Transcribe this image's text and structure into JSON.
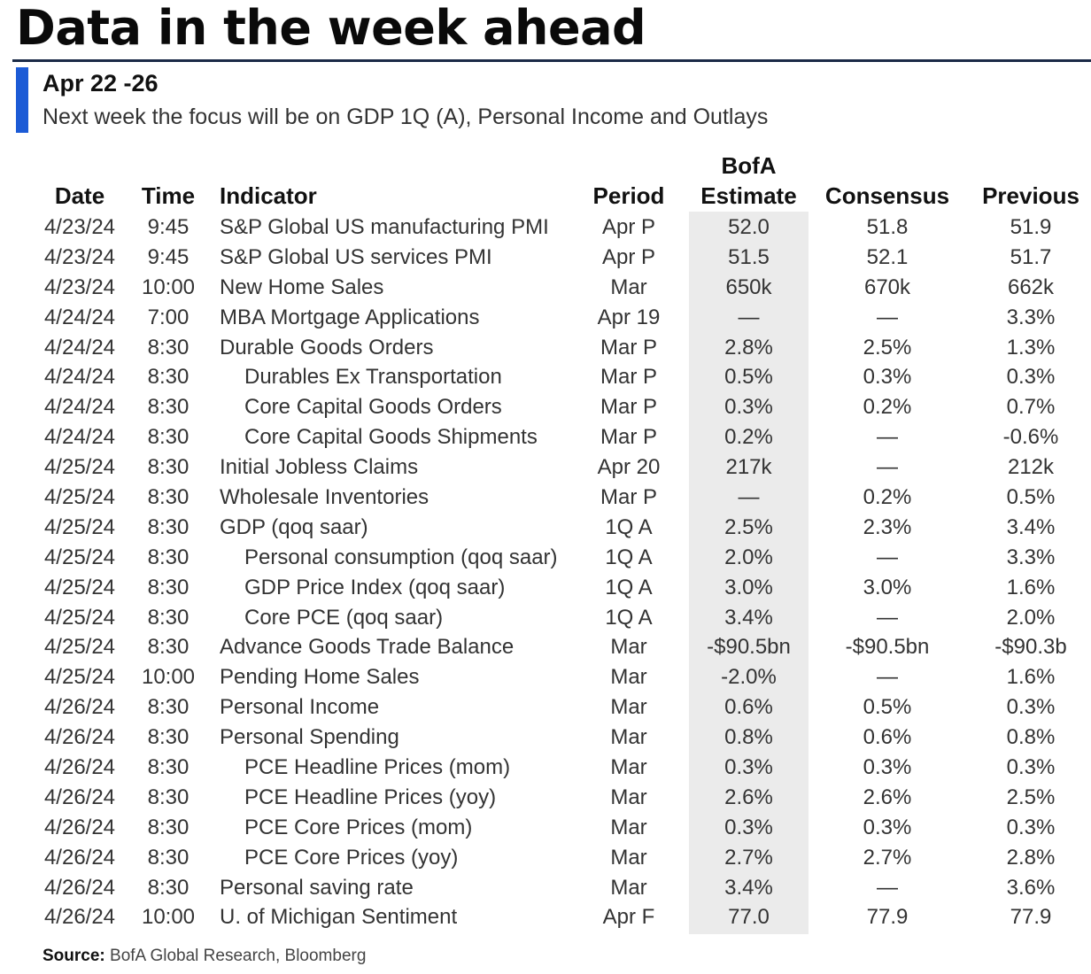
{
  "title": "Data in the week ahead",
  "section": {
    "heading": "Apr 22 -26",
    "description": "Next week the focus will be on GDP 1Q (A), Personal Income and Outlays"
  },
  "colors": {
    "accent": "#1c5bd6",
    "rule": "#1b2a47",
    "estimate_shading": "#ebebeb"
  },
  "table": {
    "headers": {
      "date": "Date",
      "time": "Time",
      "indicator": "Indicator",
      "period": "Period",
      "bofa_line1": "BofA",
      "bofa_line2": "Estimate",
      "consensus": "Consensus",
      "previous": "Previous"
    },
    "rows": [
      {
        "date": "4/23/24",
        "time": "9:45",
        "indicator": "S&P Global US manufacturing PMI",
        "indent": false,
        "period": "Apr P",
        "bofa": "52.0",
        "consensus": "51.8",
        "previous": "51.9"
      },
      {
        "date": "4/23/24",
        "time": "9:45",
        "indicator": "S&P Global US services PMI",
        "indent": false,
        "period": "Apr P",
        "bofa": "51.5",
        "consensus": "52.1",
        "previous": "51.7"
      },
      {
        "date": "4/23/24",
        "time": "10:00",
        "indicator": "New Home Sales",
        "indent": false,
        "period": "Mar",
        "bofa": "650k",
        "consensus": "670k",
        "previous": "662k"
      },
      {
        "date": "4/24/24",
        "time": "7:00",
        "indicator": "MBA Mortgage Applications",
        "indent": false,
        "period": "Apr 19",
        "bofa": "—",
        "consensus": "—",
        "previous": "3.3%"
      },
      {
        "date": "4/24/24",
        "time": "8:30",
        "indicator": "Durable Goods Orders",
        "indent": false,
        "period": "Mar P",
        "bofa": "2.8%",
        "consensus": "2.5%",
        "previous": "1.3%"
      },
      {
        "date": "4/24/24",
        "time": "8:30",
        "indicator": "Durables Ex Transportation",
        "indent": true,
        "period": "Mar P",
        "bofa": "0.5%",
        "consensus": "0.3%",
        "previous": "0.3%"
      },
      {
        "date": "4/24/24",
        "time": "8:30",
        "indicator": "Core Capital Goods Orders",
        "indent": true,
        "period": "Mar P",
        "bofa": "0.3%",
        "consensus": "0.2%",
        "previous": "0.7%"
      },
      {
        "date": "4/24/24",
        "time": "8:30",
        "indicator": "Core Capital Goods Shipments",
        "indent": true,
        "period": "Mar P",
        "bofa": "0.2%",
        "consensus": "—",
        "previous": "-0.6%"
      },
      {
        "date": "4/25/24",
        "time": "8:30",
        "indicator": "Initial Jobless Claims",
        "indent": false,
        "period": "Apr 20",
        "bofa": "217k",
        "consensus": "—",
        "previous": "212k"
      },
      {
        "date": "4/25/24",
        "time": "8:30",
        "indicator": "Wholesale Inventories",
        "indent": false,
        "period": "Mar P",
        "bofa": "—",
        "consensus": "0.2%",
        "previous": "0.5%"
      },
      {
        "date": "4/25/24",
        "time": "8:30",
        "indicator": "GDP (qoq saar)",
        "indent": false,
        "period": "1Q A",
        "bofa": "2.5%",
        "consensus": "2.3%",
        "previous": "3.4%"
      },
      {
        "date": "4/25/24",
        "time": "8:30",
        "indicator": "Personal consumption (qoq saar)",
        "indent": true,
        "period": "1Q A",
        "bofa": "2.0%",
        "consensus": "—",
        "previous": "3.3%"
      },
      {
        "date": "4/25/24",
        "time": "8:30",
        "indicator": "GDP Price Index (qoq saar)",
        "indent": true,
        "period": "1Q A",
        "bofa": "3.0%",
        "consensus": "3.0%",
        "previous": "1.6%"
      },
      {
        "date": "4/25/24",
        "time": "8:30",
        "indicator": "Core PCE (qoq saar)",
        "indent": true,
        "period": "1Q A",
        "bofa": "3.4%",
        "consensus": "—",
        "previous": "2.0%"
      },
      {
        "date": "4/25/24",
        "time": "8:30",
        "indicator": "Advance Goods Trade Balance",
        "indent": false,
        "period": "Mar",
        "bofa": "-$90.5bn",
        "consensus": "-$90.5bn",
        "previous": "-$90.3b"
      },
      {
        "date": "4/25/24",
        "time": "10:00",
        "indicator": "Pending Home Sales",
        "indent": false,
        "period": "Mar",
        "bofa": "-2.0%",
        "consensus": "—",
        "previous": "1.6%"
      },
      {
        "date": "4/26/24",
        "time": "8:30",
        "indicator": "Personal Income",
        "indent": false,
        "period": "Mar",
        "bofa": "0.6%",
        "consensus": "0.5%",
        "previous": "0.3%"
      },
      {
        "date": "4/26/24",
        "time": "8:30",
        "indicator": "Personal Spending",
        "indent": false,
        "period": "Mar",
        "bofa": "0.8%",
        "consensus": "0.6%",
        "previous": "0.8%"
      },
      {
        "date": "4/26/24",
        "time": "8:30",
        "indicator": "PCE Headline Prices (mom)",
        "indent": true,
        "period": "Mar",
        "bofa": "0.3%",
        "consensus": "0.3%",
        "previous": "0.3%"
      },
      {
        "date": "4/26/24",
        "time": "8:30",
        "indicator": "PCE Headline Prices (yoy)",
        "indent": true,
        "period": "Mar",
        "bofa": "2.6%",
        "consensus": "2.6%",
        "previous": "2.5%"
      },
      {
        "date": "4/26/24",
        "time": "8:30",
        "indicator": "PCE Core Prices (mom)",
        "indent": true,
        "period": "Mar",
        "bofa": "0.3%",
        "consensus": "0.3%",
        "previous": "0.3%"
      },
      {
        "date": "4/26/24",
        "time": "8:30",
        "indicator": "PCE Core Prices (yoy)",
        "indent": true,
        "period": "Mar",
        "bofa": "2.7%",
        "consensus": "2.7%",
        "previous": "2.8%"
      },
      {
        "date": "4/26/24",
        "time": "8:30",
        "indicator": "Personal saving rate",
        "indent": false,
        "period": "Mar",
        "bofa": "3.4%",
        "consensus": "—",
        "previous": "3.6%"
      },
      {
        "date": "4/26/24",
        "time": "10:00",
        "indicator": "U. of Michigan Sentiment",
        "indent": false,
        "period": "Apr F",
        "bofa": "77.0",
        "consensus": "77.9",
        "previous": "77.9"
      }
    ]
  },
  "source": {
    "label": "Source:",
    "text": " BofA Global Research, Bloomberg"
  }
}
